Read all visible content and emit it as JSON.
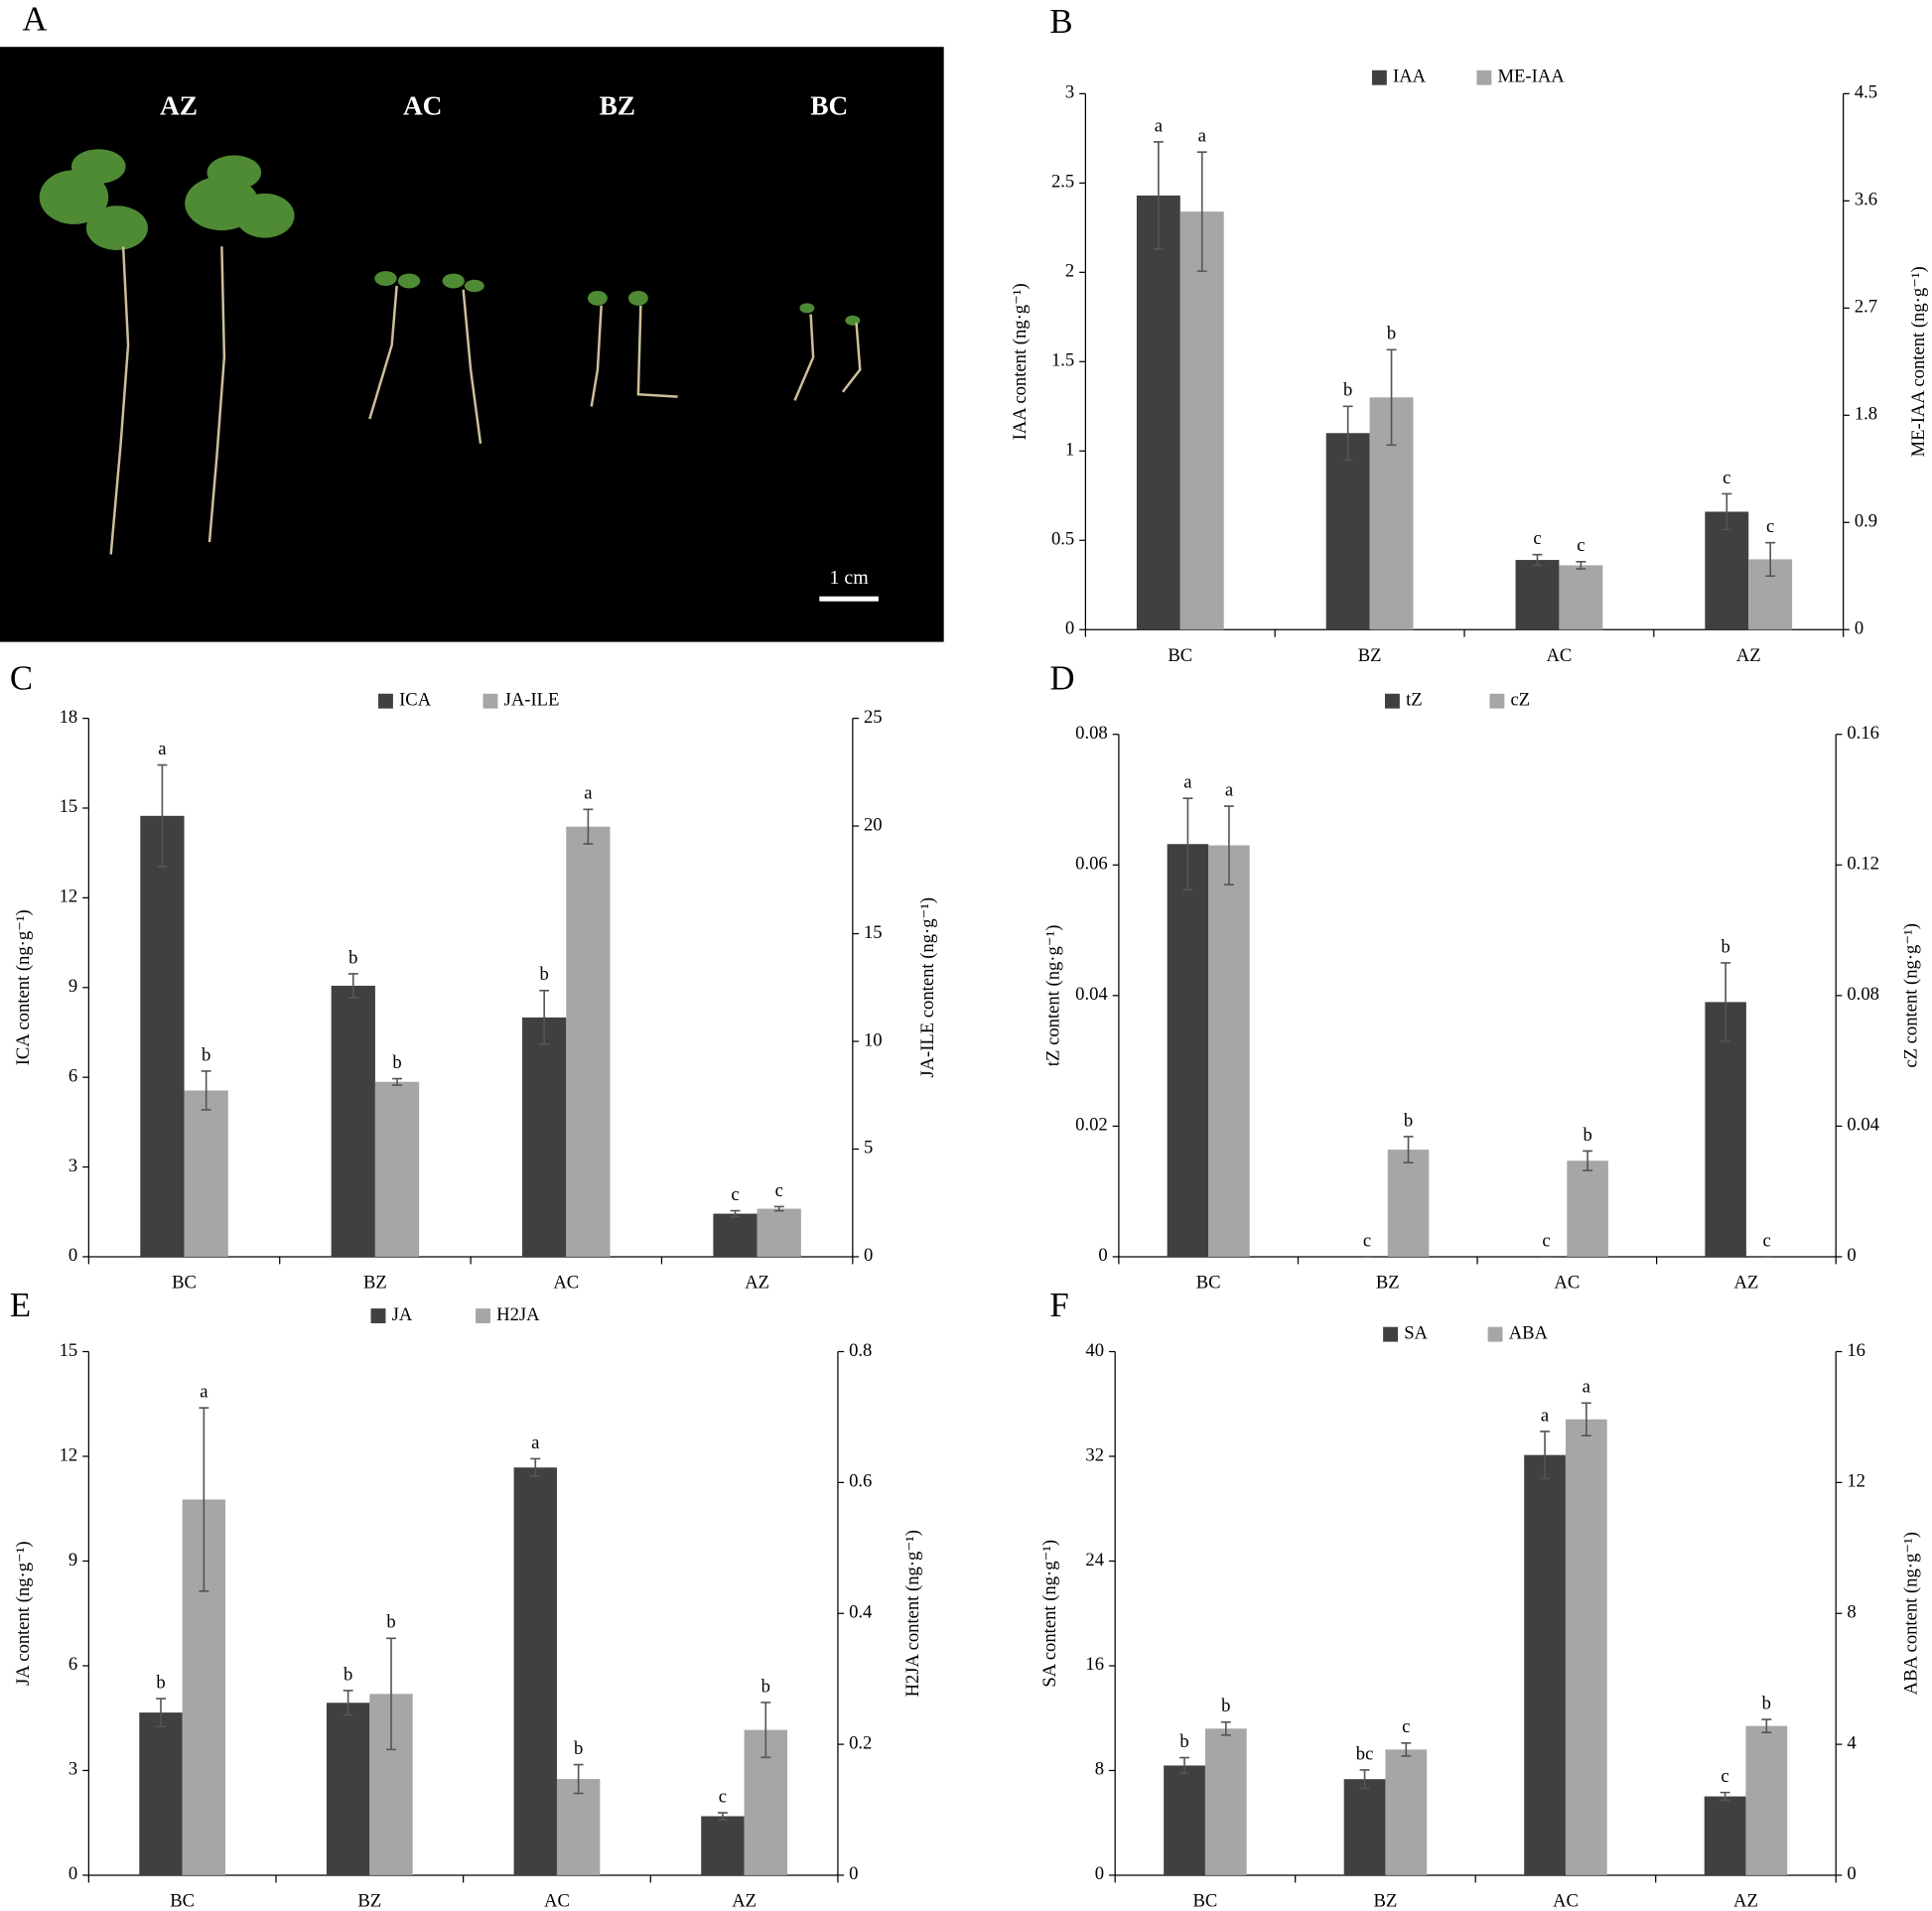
{
  "photo": {
    "panel": "A",
    "labels": [
      "AZ",
      "AC",
      "BZ",
      "BC"
    ],
    "scale_bar": "1 cm"
  },
  "chart_data": [
    {
      "panel": "B",
      "type": "bar",
      "categories": [
        "BC",
        "BZ",
        "AC",
        "AZ"
      ],
      "ylabel": "IAA content (ng·g⁻¹)",
      "y2label": "ME-IAA content (ng·g⁻¹)",
      "ylim": [
        0,
        3
      ],
      "yticks": [
        0,
        0.5,
        1,
        1.5,
        2,
        2.5,
        3
      ],
      "y2lim": [
        0,
        4.5
      ],
      "y2ticks": [
        0,
        0.9,
        1.8,
        2.7,
        3.6,
        4.5
      ],
      "legend": "top",
      "series": [
        {
          "name": "IAA",
          "color": "#404040",
          "values": [
            2.43,
            1.1,
            0.39,
            0.66
          ],
          "errors": [
            0.3,
            0.15,
            0.03,
            0.1
          ],
          "letters": [
            "a",
            "b",
            "c",
            "c"
          ]
        },
        {
          "name": "ME-IAA",
          "color": "#a6a6a6",
          "axis": "y2",
          "values": [
            3.51,
            1.95,
            0.54,
            0.59
          ],
          "errors": [
            0.5,
            0.4,
            0.03,
            0.14
          ],
          "letters": [
            "a",
            "b",
            "c",
            "c"
          ]
        }
      ]
    },
    {
      "panel": "C",
      "type": "bar",
      "categories": [
        "BC",
        "BZ",
        "AC",
        "AZ"
      ],
      "ylabel": "ICA content (ng·g⁻¹)",
      "y2label": "JA-ILE content (ng·g⁻¹)",
      "ylim": [
        0,
        18
      ],
      "yticks": [
        0,
        3,
        6,
        9,
        12,
        15,
        18
      ],
      "y2lim": [
        0,
        25
      ],
      "y2ticks": [
        0,
        5,
        10,
        15,
        20,
        25
      ],
      "legend": "top",
      "series": [
        {
          "name": "ICA",
          "color": "#404040",
          "values": [
            14.74,
            9.06,
            8.0,
            1.44
          ],
          "errors": [
            1.7,
            0.4,
            0.9,
            0.1
          ],
          "letters": [
            "a",
            "b",
            "b",
            "c"
          ]
        },
        {
          "name": "JA-ILE",
          "color": "#a6a6a6",
          "axis": "y2",
          "values": [
            7.72,
            8.12,
            19.97,
            2.23
          ],
          "errors": [
            0.9,
            0.15,
            0.8,
            0.1
          ],
          "letters": [
            "b",
            "b",
            "a",
            "c"
          ]
        }
      ]
    },
    {
      "panel": "D",
      "type": "bar",
      "categories": [
        "BC",
        "BZ",
        "AC",
        "AZ"
      ],
      "ylabel": "tZ content (ng·g⁻¹)",
      "y2label": "cZ content (ng·g⁻¹)",
      "ylim": [
        0,
        0.08
      ],
      "yticks": [
        0,
        0.02,
        0.04,
        0.06,
        0.08
      ],
      "y2lim": [
        0,
        0.16
      ],
      "y2ticks": [
        0,
        0.04,
        0.08,
        0.12,
        0.16
      ],
      "legend": "top",
      "series": [
        {
          "name": "tZ",
          "color": "#404040",
          "values": [
            0.0632,
            0,
            0,
            0.039
          ],
          "errors": [
            0.007,
            0,
            0,
            0.006
          ],
          "letters": [
            "a",
            "c",
            "c",
            "b"
          ]
        },
        {
          "name": "cZ",
          "color": "#a6a6a6",
          "axis": "y2",
          "values": [
            0.126,
            0.0328,
            0.0294,
            0
          ],
          "errors": [
            0.012,
            0.004,
            0.003,
            0
          ],
          "letters": [
            "a",
            "b",
            "b",
            "c"
          ]
        }
      ]
    },
    {
      "panel": "E",
      "type": "bar",
      "categories": [
        "BC",
        "BZ",
        "AC",
        "AZ"
      ],
      "ylabel": "JA content (ng·g⁻¹)",
      "y2label": "H2JA content (ng·g⁻¹)",
      "ylim": [
        0,
        15
      ],
      "yticks": [
        0,
        3,
        6,
        9,
        12,
        15
      ],
      "y2lim": [
        0,
        0.8
      ],
      "y2ticks": [
        0,
        0.2,
        0.4,
        0.6,
        0.8
      ],
      "legend": "top",
      "series": [
        {
          "name": "JA",
          "color": "#404040",
          "values": [
            4.66,
            4.94,
            11.68,
            1.69
          ],
          "errors": [
            0.4,
            0.35,
            0.25,
            0.1
          ],
          "letters": [
            "b",
            "b",
            "a",
            "c"
          ]
        },
        {
          "name": "H2JA",
          "color": "#a6a6a6",
          "axis": "y2",
          "values": [
            0.574,
            0.277,
            0.147,
            0.222
          ],
          "errors": [
            0.14,
            0.085,
            0.022,
            0.042
          ],
          "letters": [
            "a",
            "b",
            "b",
            "b"
          ]
        }
      ]
    },
    {
      "panel": "F",
      "type": "bar",
      "categories": [
        "BC",
        "BZ",
        "AC",
        "AZ"
      ],
      "ylabel": "SA content (ng·g⁻¹)",
      "y2label": "ABA content (ng·g⁻¹)",
      "ylim": [
        0,
        40
      ],
      "yticks": [
        0,
        8,
        16,
        24,
        32,
        40
      ],
      "y2lim": [
        0,
        16
      ],
      "y2ticks": [
        0,
        4,
        8,
        12,
        16
      ],
      "legend": "top",
      "series": [
        {
          "name": "SA",
          "color": "#404040",
          "values": [
            8.38,
            7.34,
            32.1,
            6.02
          ],
          "errors": [
            0.6,
            0.7,
            1.8,
            0.3
          ],
          "letters": [
            "b",
            "bc",
            "a",
            "c"
          ]
        },
        {
          "name": "ABA",
          "color": "#a6a6a6",
          "axis": "y2",
          "values": [
            4.48,
            3.84,
            13.93,
            4.56
          ],
          "errors": [
            0.2,
            0.2,
            0.5,
            0.2
          ],
          "letters": [
            "b",
            "c",
            "a",
            "b"
          ]
        }
      ]
    }
  ]
}
